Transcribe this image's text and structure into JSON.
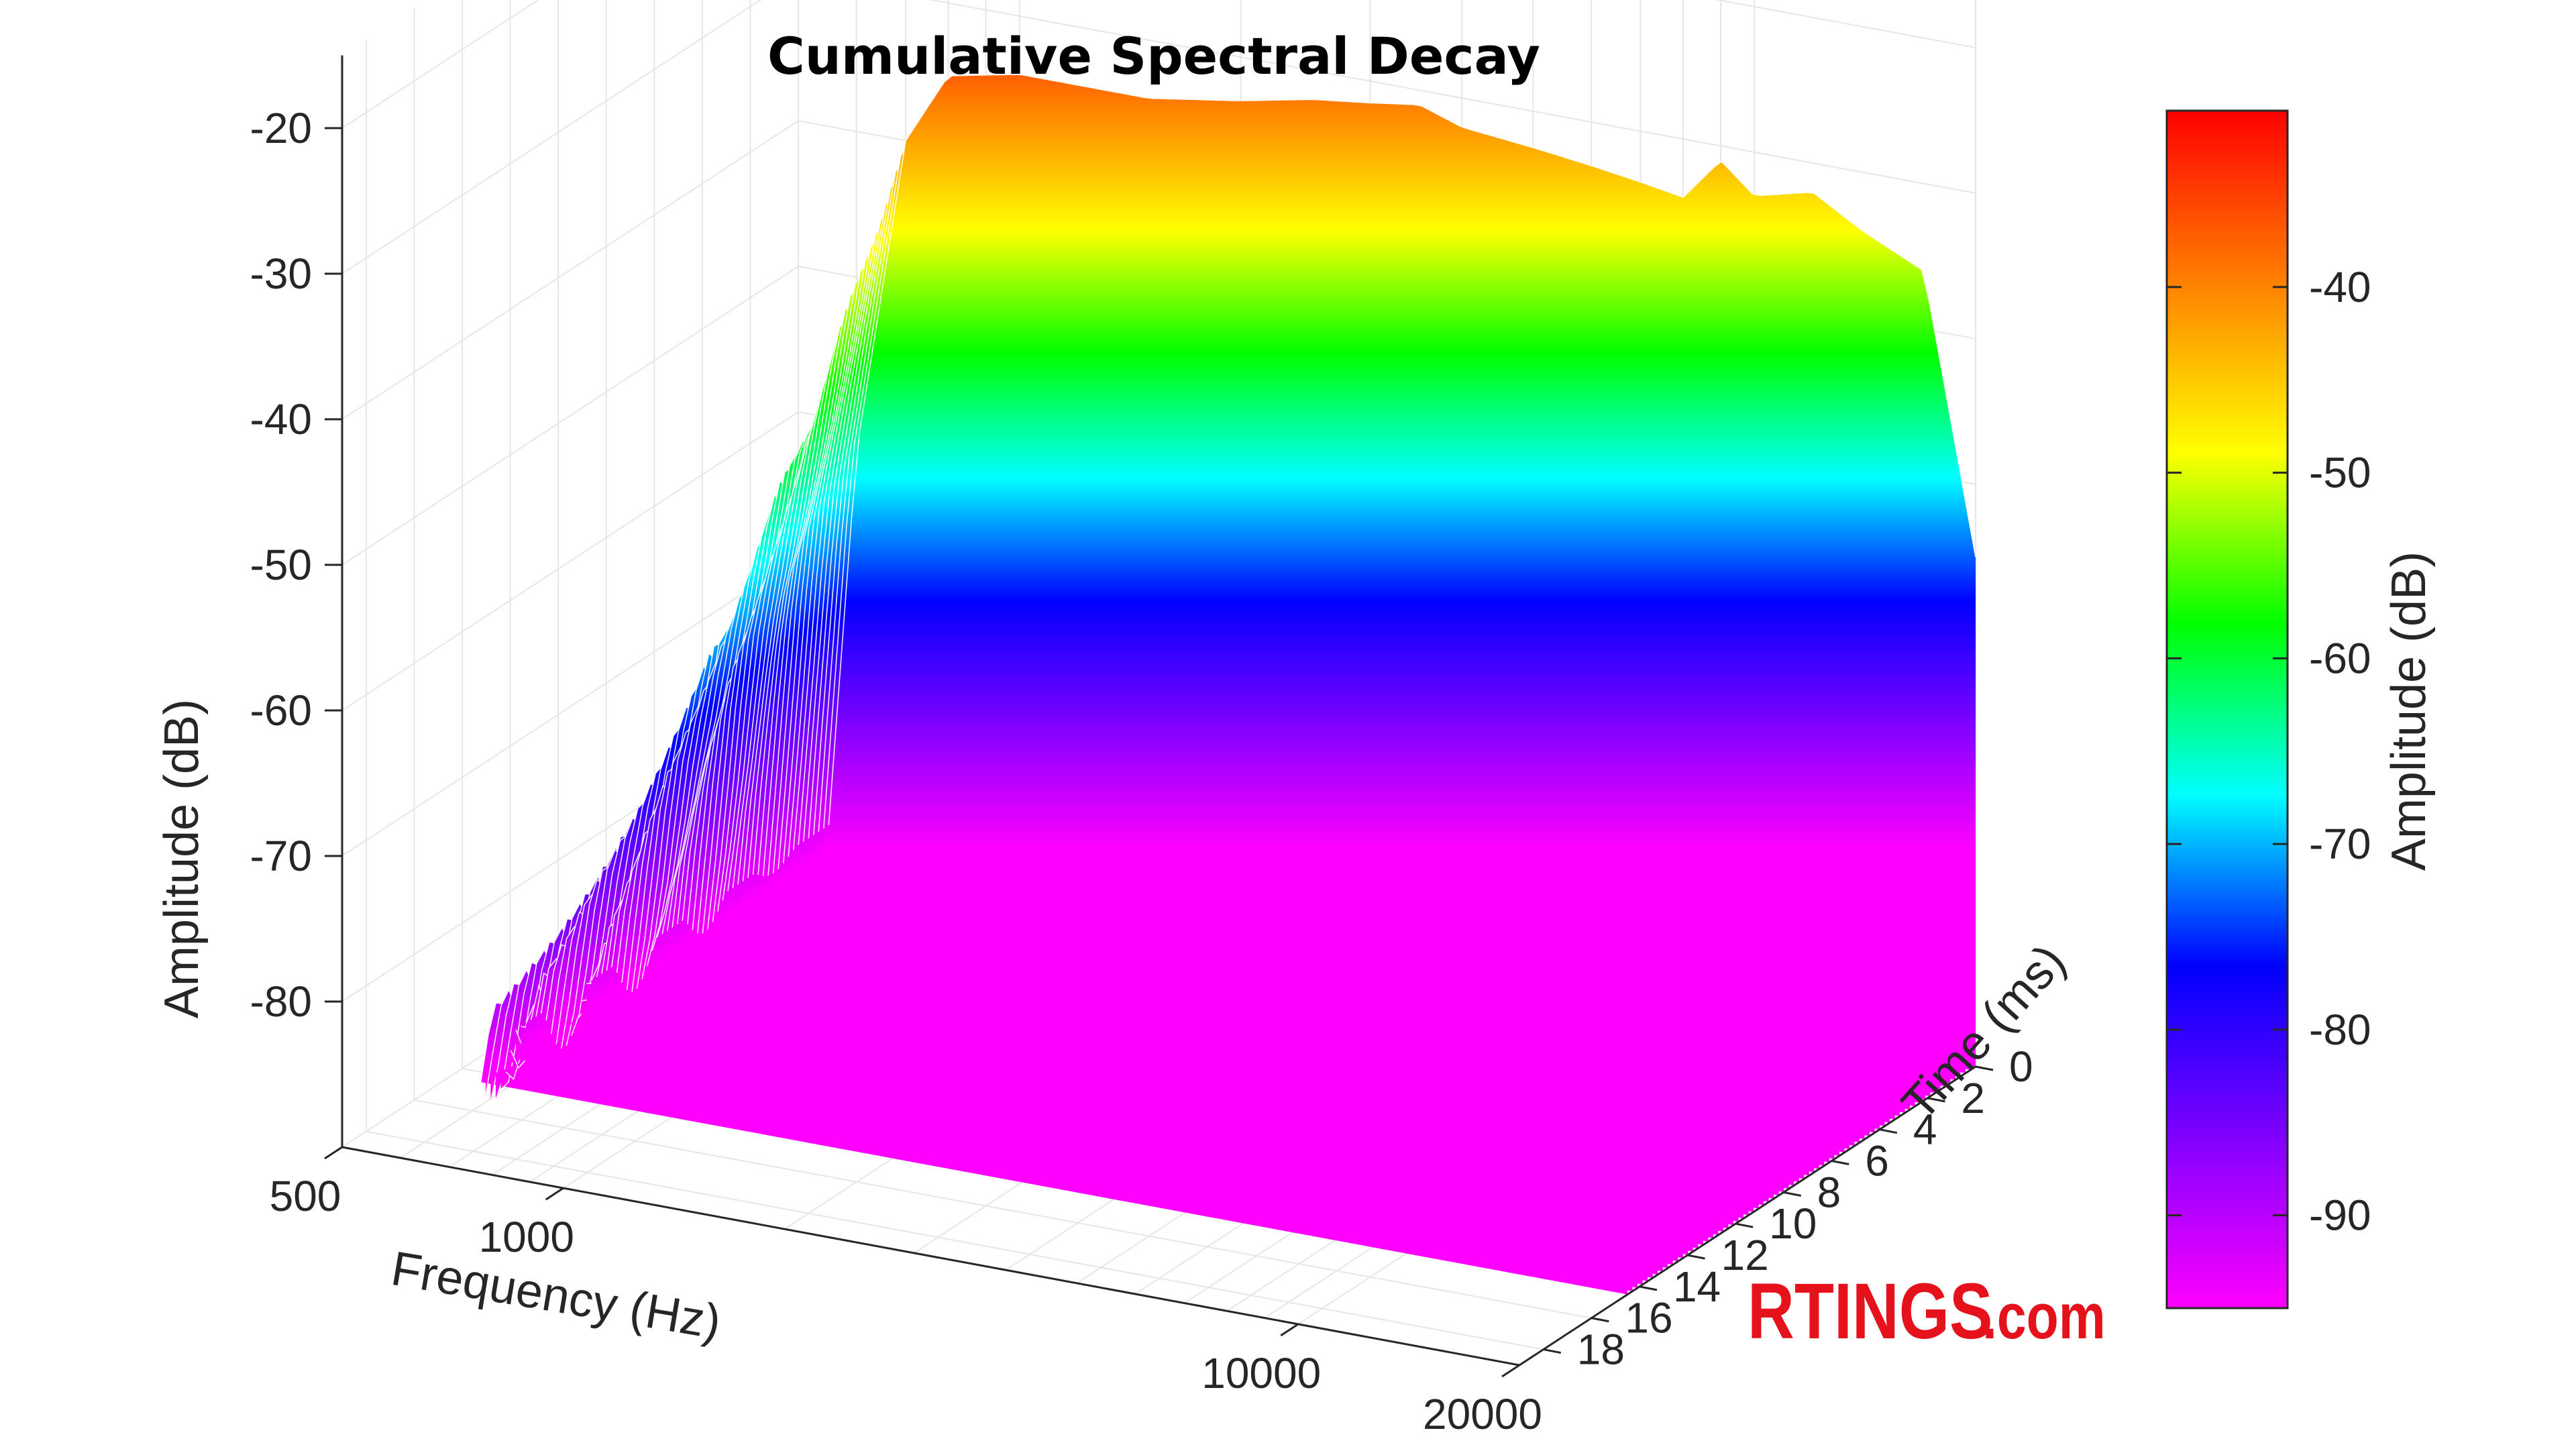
{
  "chart_data": {
    "type": "surface3d",
    "title": "Cumulative Spectral Decay",
    "x_axis": {
      "label": "Frequency (Hz)",
      "scale": "log",
      "range": [
        500,
        20000
      ],
      "ticks": [
        {
          "value": 500,
          "label": "500"
        },
        {
          "value": 1000,
          "label": "1000"
        },
        {
          "value": 10000,
          "label": "10000"
        },
        {
          "value": 20000,
          "label": "20000"
        }
      ]
    },
    "y_axis": {
      "label": "Time (ms)",
      "range": [
        0,
        19
      ],
      "ticks": [
        {
          "value": 0,
          "label": "0"
        },
        {
          "value": 2,
          "label": "2"
        },
        {
          "value": 4,
          "label": "4"
        },
        {
          "value": 6,
          "label": "6"
        },
        {
          "value": 8,
          "label": "8"
        },
        {
          "value": 10,
          "label": "10"
        },
        {
          "value": 12,
          "label": "12"
        },
        {
          "value": 14,
          "label": "14"
        },
        {
          "value": 16,
          "label": "16"
        },
        {
          "value": 18,
          "label": "18"
        }
      ]
    },
    "z_axis": {
      "label": "Amplitude (dB)",
      "range": [
        -90,
        -15
      ],
      "ticks": [
        {
          "value": -20,
          "label": "-20"
        },
        {
          "value": -30,
          "label": "-30"
        },
        {
          "value": -40,
          "label": "-40"
        },
        {
          "value": -50,
          "label": "-50"
        },
        {
          "value": -60,
          "label": "-60"
        },
        {
          "value": -70,
          "label": "-70"
        },
        {
          "value": -80,
          "label": "-80"
        }
      ]
    },
    "colorbar": {
      "label": "Amplitude (dB)",
      "range": [
        -95,
        -30.5
      ],
      "ticks": [
        {
          "value": -40,
          "label": "-40"
        },
        {
          "value": -50,
          "label": "-50"
        },
        {
          "value": -60,
          "label": "-60"
        },
        {
          "value": -70,
          "label": "-70"
        },
        {
          "value": -80,
          "label": "-80"
        },
        {
          "value": -90,
          "label": "-90"
        }
      ],
      "colormap": [
        "#ff00ff",
        "#8000ff",
        "#0000ff",
        "#00ffff",
        "#00ff00",
        "#ffff00",
        "#ff8000",
        "#ff0000"
      ]
    },
    "surface": {
      "time_start_ms": 0,
      "time_end_ms": 14.5,
      "slices": 70,
      "freq_hz": [
        550,
        600,
        700,
        800,
        1000,
        1200,
        1500,
        2000,
        2500,
        3000,
        3500,
        4000,
        5000,
        6000,
        7000,
        8000,
        9000,
        10000,
        12000,
        14000,
        17000,
        20000
      ],
      "initial_db": [
        -88,
        -62,
        -40,
        -35,
        -34,
        -34,
        -34,
        -33,
        -32,
        -31.5,
        -31,
        -32,
        -32.5,
        -33,
        -33.5,
        -34,
        -31,
        -33,
        -32,
        -34,
        -36,
        -55
      ],
      "floor_db": [
        -89,
        -86,
        -82,
        -84,
        -83,
        -80,
        -82,
        -84,
        -79,
        -86,
        -81,
        -84,
        -80,
        -85,
        -79,
        -86,
        -82,
        -84,
        -83,
        -80,
        -79,
        -78
      ]
    },
    "grid": true,
    "legend": "none"
  },
  "watermark": {
    "text_main": "RTINGS",
    "text_suffix": ".com",
    "color": "#e5111b"
  }
}
